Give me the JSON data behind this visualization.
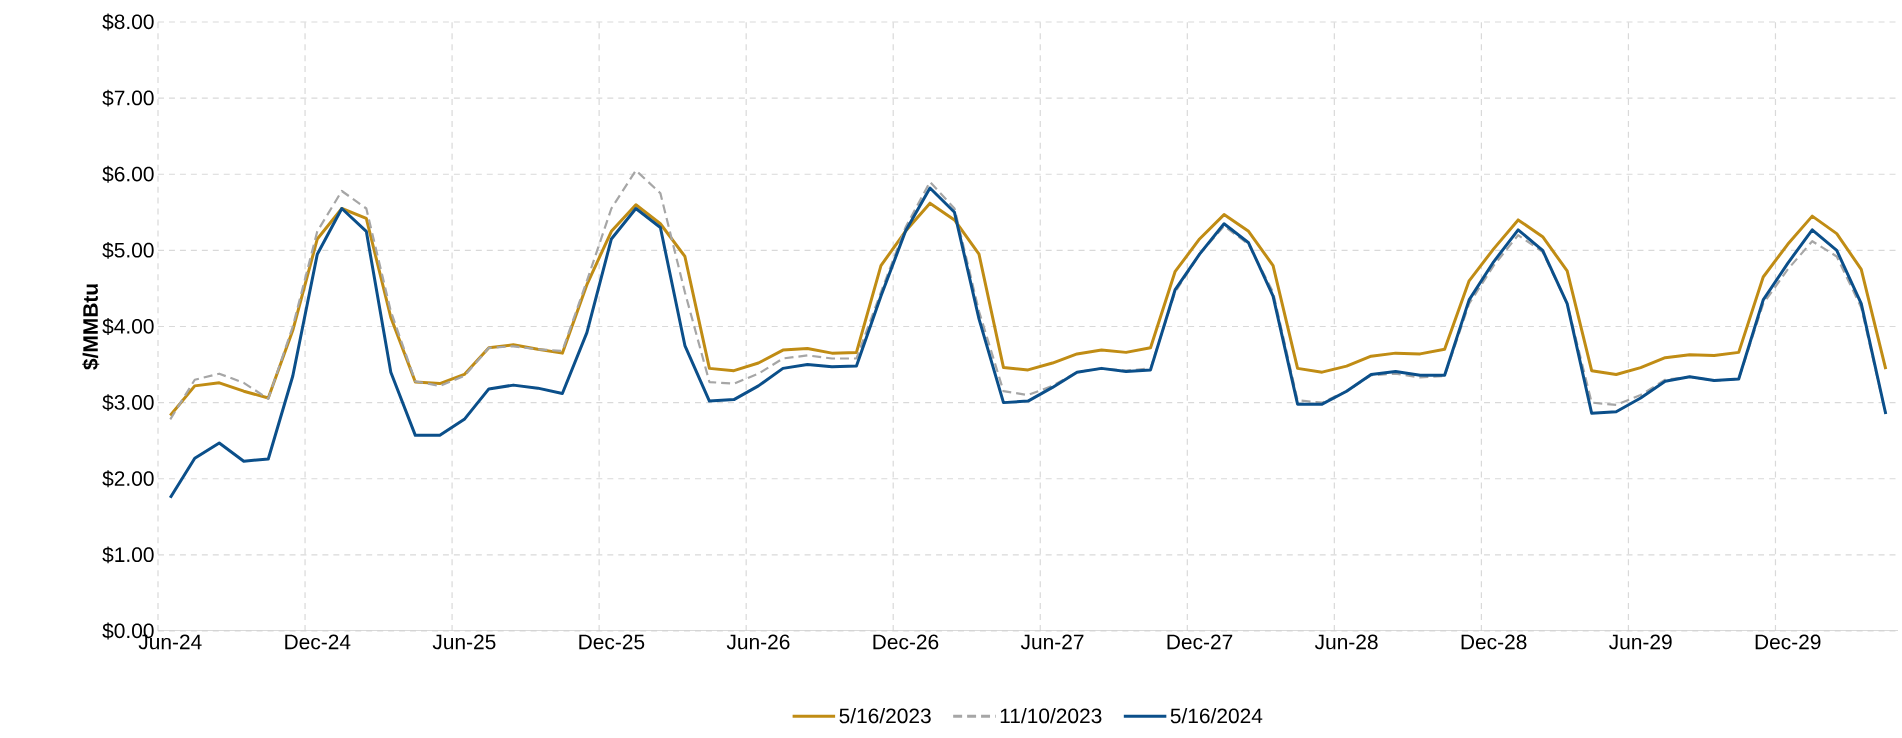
{
  "chart_data": {
    "type": "line",
    "ylabel": "$/MMBtu",
    "categories": [
      "Jun-24",
      null,
      null,
      null,
      null,
      null,
      "Dec-24",
      null,
      null,
      null,
      null,
      null,
      "Jun-25",
      null,
      null,
      null,
      null,
      null,
      "Dec-25",
      null,
      null,
      null,
      null,
      null,
      "Jun-26",
      null,
      null,
      null,
      null,
      null,
      "Dec-26",
      null,
      null,
      null,
      null,
      null,
      "Jun-27",
      null,
      null,
      null,
      null,
      null,
      "Dec-27",
      null,
      null,
      null,
      null,
      null,
      "Jun-28",
      null,
      null,
      null,
      null,
      null,
      "Dec-28",
      null,
      null,
      null,
      null,
      null,
      "Jun-29",
      null,
      null,
      null,
      null,
      null,
      "Dec-29",
      null,
      null,
      null,
      null
    ],
    "series": [
      {
        "name": "5/16/2023",
        "color": "#c08c14",
        "line_style": "solid",
        "values": [
          2.83,
          3.22,
          3.26,
          3.15,
          3.06,
          3.95,
          5.15,
          5.55,
          5.42,
          4.12,
          3.27,
          3.25,
          3.37,
          3.72,
          3.76,
          3.7,
          3.65,
          4.55,
          5.25,
          5.6,
          5.35,
          4.92,
          3.45,
          3.42,
          3.52,
          3.69,
          3.71,
          3.65,
          3.66,
          4.8,
          5.25,
          5.62,
          5.4,
          4.95,
          3.46,
          3.43,
          3.52,
          3.64,
          3.69,
          3.66,
          3.72,
          4.72,
          5.15,
          5.47,
          5.25,
          4.8,
          3.45,
          3.4,
          3.48,
          3.61,
          3.65,
          3.64,
          3.7,
          4.6,
          5.02,
          5.4,
          5.18,
          4.73,
          3.42,
          3.37,
          3.46,
          3.59,
          3.63,
          3.62,
          3.66,
          4.65,
          5.08,
          5.45,
          5.22,
          4.75,
          3.44
        ]
      },
      {
        "name": "11/10/2023",
        "color": "#a6a6a6",
        "line_style": "dashed",
        "values": [
          2.78,
          3.3,
          3.38,
          3.26,
          3.05,
          4.0,
          5.25,
          5.78,
          5.55,
          4.2,
          3.28,
          3.22,
          3.35,
          3.72,
          3.74,
          3.7,
          3.68,
          4.6,
          5.55,
          6.05,
          5.75,
          4.45,
          3.27,
          3.25,
          3.38,
          3.58,
          3.62,
          3.58,
          3.58,
          4.45,
          5.3,
          5.9,
          5.55,
          4.2,
          3.15,
          3.1,
          3.22,
          3.4,
          3.45,
          3.42,
          3.45,
          4.45,
          4.95,
          5.32,
          5.08,
          4.45,
          3.03,
          3.0,
          3.15,
          3.36,
          3.38,
          3.33,
          3.35,
          4.3,
          4.8,
          5.2,
          4.98,
          4.3,
          3.0,
          2.97,
          3.1,
          3.3,
          3.34,
          3.29,
          3.31,
          4.3,
          4.75,
          5.12,
          4.92,
          4.25,
          2.85
        ]
      },
      {
        "name": "5/16/2024",
        "color": "#0b4f8a",
        "line_style": "solid",
        "values": [
          1.75,
          2.27,
          2.47,
          2.23,
          2.26,
          3.35,
          4.95,
          5.55,
          5.25,
          3.4,
          2.57,
          2.57,
          2.78,
          3.18,
          3.23,
          3.19,
          3.12,
          3.92,
          5.15,
          5.55,
          5.3,
          3.75,
          3.02,
          3.04,
          3.22,
          3.45,
          3.5,
          3.47,
          3.48,
          4.4,
          5.25,
          5.82,
          5.5,
          4.1,
          3.0,
          3.02,
          3.2,
          3.4,
          3.45,
          3.41,
          3.43,
          4.48,
          4.95,
          5.35,
          5.1,
          4.4,
          2.98,
          2.98,
          3.15,
          3.37,
          3.41,
          3.36,
          3.36,
          4.35,
          4.85,
          5.27,
          5.0,
          4.3,
          2.86,
          2.88,
          3.06,
          3.28,
          3.34,
          3.29,
          3.31,
          4.35,
          4.83,
          5.27,
          5.0,
          4.3,
          2.85
        ]
      }
    ],
    "ylim": [
      0,
      8
    ],
    "yticks": [
      {
        "value": 0,
        "label": "$0.00"
      },
      {
        "value": 1,
        "label": "$1.00"
      },
      {
        "value": 2,
        "label": "$2.00"
      },
      {
        "value": 3,
        "label": "$3.00"
      },
      {
        "value": 4,
        "label": "$4.00"
      },
      {
        "value": 5,
        "label": "$5.00"
      },
      {
        "value": 6,
        "label": "$6.00"
      },
      {
        "value": 7,
        "label": "$7.00"
      },
      {
        "value": 8,
        "label": "$8.00"
      }
    ],
    "grid": true,
    "legend": "bottom"
  }
}
